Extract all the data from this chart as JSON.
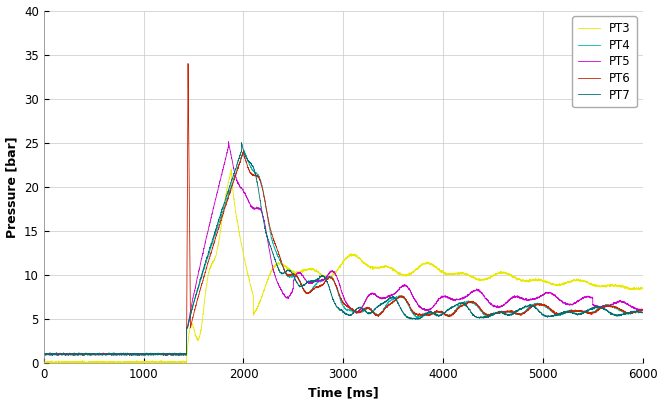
{
  "title": "",
  "xlabel": "Time [ms]",
  "ylabel": "Pressure [bar]",
  "xlim": [
    0,
    6000
  ],
  "ylim": [
    0,
    40
  ],
  "yticks": [
    0,
    5,
    10,
    15,
    20,
    25,
    30,
    35,
    40
  ],
  "xticks": [
    0,
    1000,
    2000,
    3000,
    4000,
    5000,
    6000
  ],
  "series_names": [
    "PT3",
    "PT4",
    "PT5",
    "PT6",
    "PT7"
  ],
  "colors": [
    "#e8e800",
    "#00b8b8",
    "#cc00cc",
    "#cc2200",
    "#007070"
  ],
  "background_color": "#ffffff",
  "grid_color": "#c8c8c8",
  "legend_loc": "upper right",
  "figsize": [
    6.63,
    4.05
  ],
  "dpi": 100
}
